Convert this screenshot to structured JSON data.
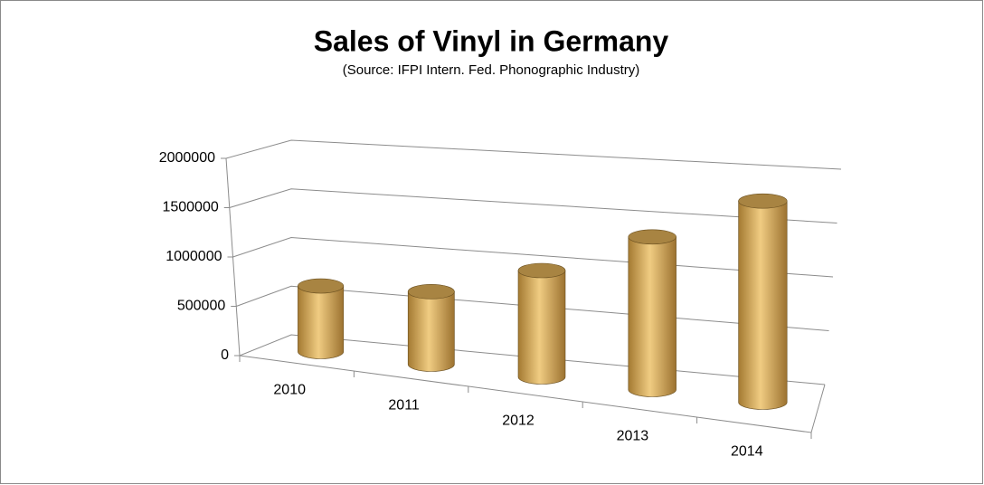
{
  "chart_data": {
    "type": "bar",
    "title": "Sales of Vinyl in Germany",
    "subtitle": "(Source: IFPI Intern. Fed. Phonographic Industry)",
    "categories": [
      "2010",
      "2011",
      "2012",
      "2013",
      "2014"
    ],
    "values": [
      650000,
      700000,
      1000000,
      1400000,
      1800000
    ],
    "color": "#d4a85a",
    "ylim": [
      0,
      2000000
    ],
    "yticks": [
      0,
      500000,
      1000000,
      1500000,
      2000000
    ],
    "grid": true
  }
}
